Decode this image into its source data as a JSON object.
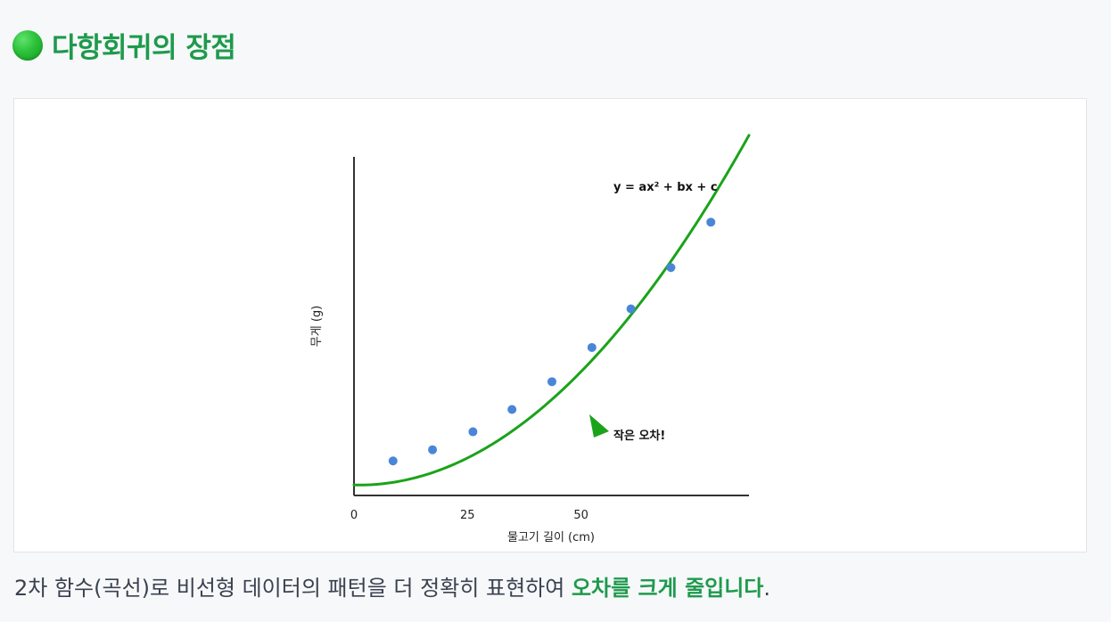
{
  "header": {
    "title": "다항회귀의 장점",
    "icon": "green-circle-icon",
    "icon_color": "#2cc13a",
    "title_color": "#1e9a4c"
  },
  "chart_data": {
    "type": "scatter",
    "title": "",
    "xlabel": "물고기 길이 (cm)",
    "ylabel": "무게 (g)",
    "x_ticks": [
      "0",
      "25",
      "50"
    ],
    "xlim": [
      0,
      87
    ],
    "ylim": [
      0,
      100
    ],
    "grid": false,
    "series": [
      {
        "kind": "points",
        "color": "#4a86d8",
        "x": [
          8.6,
          17.3,
          26.2,
          34.8,
          43.6,
          52.4,
          61.0,
          69.8,
          78.6
        ],
        "y": [
          10.2,
          13.5,
          18.8,
          25.4,
          33.6,
          43.7,
          55.1,
          67.3,
          80.7
        ]
      },
      {
        "kind": "curve",
        "equation": "y = ax² + bx + c",
        "color": "#1aa31a",
        "coef": {
          "a": 0.014,
          "b": -0.031,
          "c": 3.1
        },
        "x_range": [
          0,
          87
        ]
      }
    ],
    "annotations": [
      {
        "text": "y = ax² + bx + c"
      },
      {
        "text": "작은 오차!",
        "x": 58,
        "y": 24,
        "arrow_color": "#1aa31a"
      }
    ]
  },
  "caption": {
    "prefix": "2차 함수(곡선)로 비선형 데이터의 패턴을 더 정확히 표현하여 ",
    "emphasis": "오차를 크게 줄입니다",
    "suffix": "."
  }
}
